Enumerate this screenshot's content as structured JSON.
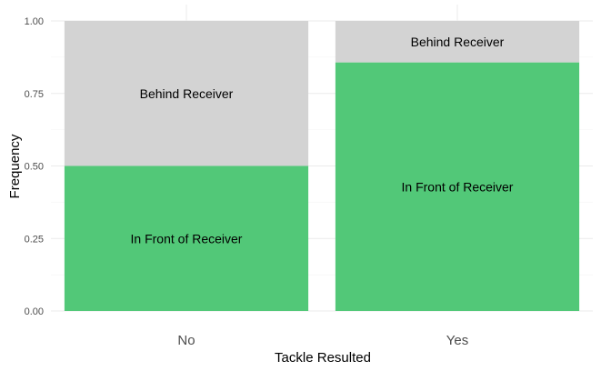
{
  "chart_data": {
    "type": "bar",
    "stacked": true,
    "title": "",
    "xlabel": "Tackle Resulted",
    "ylabel": "Frequency",
    "categories": [
      "No",
      "Yes"
    ],
    "ylim": [
      0,
      1
    ],
    "yticks": [
      "0.00",
      "0.25",
      "0.50",
      "0.75",
      "1.00"
    ],
    "ytick_values": [
      0,
      0.25,
      0.5,
      0.75,
      1.0
    ],
    "grid": true,
    "legend": "none",
    "series": [
      {
        "name": "In Front of Receiver",
        "color": "#52c878",
        "values": [
          0.5,
          0.857
        ]
      },
      {
        "name": "Behind Receiver",
        "color": "#d3d3d3",
        "values": [
          0.5,
          0.143
        ]
      }
    ]
  }
}
